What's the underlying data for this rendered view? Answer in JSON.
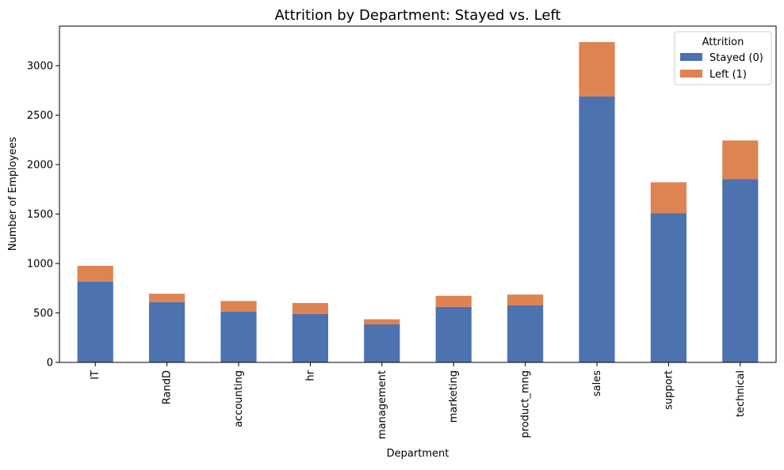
{
  "chart_data": {
    "type": "bar",
    "stacked": true,
    "title": "Attrition by Department: Stayed vs. Left",
    "xlabel": "Department",
    "ylabel": "Number of Employees",
    "categories": [
      "IT",
      "RandD",
      "accounting",
      "hr",
      "management",
      "marketing",
      "product_mng",
      "sales",
      "support",
      "technical"
    ],
    "series": [
      {
        "name": "Stayed (0)",
        "color": "#4c72b0",
        "values": [
          818,
          609,
          512,
          488,
          384,
          561,
          576,
          2689,
          1509,
          1854
        ]
      },
      {
        "name": "Left (1)",
        "color": "#dd8452",
        "values": [
          158,
          85,
          109,
          113,
          52,
          112,
          110,
          550,
          312,
          390
        ]
      }
    ],
    "ylim": [
      0,
      3400
    ],
    "yticks": [
      0,
      500,
      1000,
      1500,
      2000,
      2500,
      3000
    ],
    "legend": {
      "title": "Attrition",
      "position": "top-right"
    },
    "grid": false
  }
}
